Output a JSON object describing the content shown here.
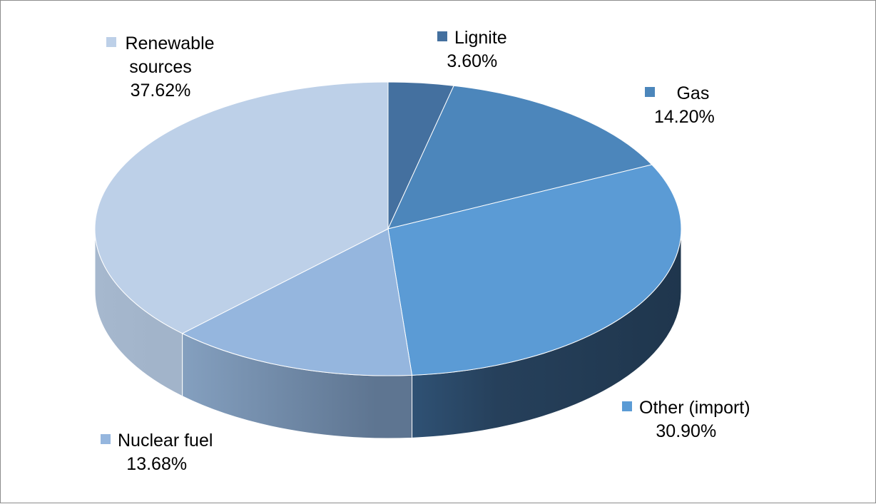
{
  "chart_data": {
    "type": "pie",
    "title": "",
    "unit": "%",
    "slices": [
      {
        "name": "Lignite",
        "value": 3.6,
        "label": "3.60%",
        "color": "#44709f"
      },
      {
        "name": "Gas",
        "value": 14.2,
        "label": "14.20%",
        "color": "#4c86bb"
      },
      {
        "name": "Other (import)",
        "value": 30.9,
        "label": "30.90%",
        "color": "#5b9bd5"
      },
      {
        "name": "Nuclear fuel",
        "value": 13.68,
        "label": "13.68%",
        "color": "#95b6de"
      },
      {
        "name": "Renewable sources",
        "value": 37.62,
        "label": "37.62%",
        "color": "#bdd0e8"
      }
    ],
    "legend": "none",
    "data_labels": "outside",
    "style": "3d"
  }
}
